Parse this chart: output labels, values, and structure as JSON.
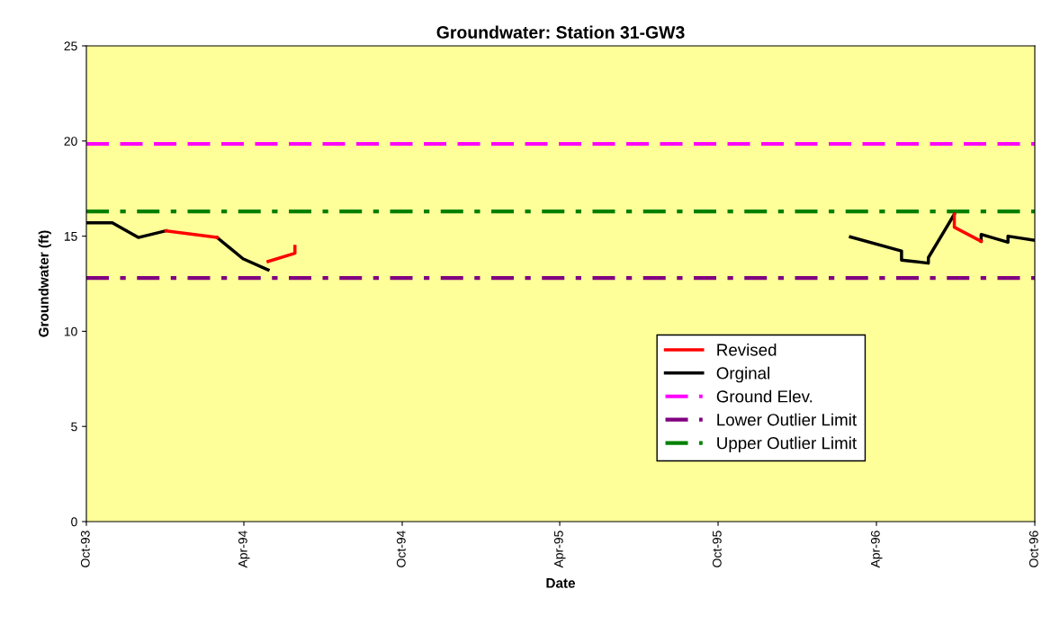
{
  "chart_data": {
    "type": "line",
    "title": "Groundwater: Station 31-GW3",
    "xlabel": "Date",
    "ylabel": "Groundwater (ft)",
    "series": [
      {
        "name": "Revised",
        "color": "#ff0000",
        "x": [
          "1994-01-01",
          "1994-03-01",
          null,
          "1994-04-29",
          "1994-05-30",
          "1994-05-30",
          null,
          "1996-06-30",
          "1996-06-30",
          "1996-07-31"
        ],
        "values": [
          15.28,
          14.93,
          null,
          13.67,
          14.1,
          14.46,
          null,
          16.15,
          15.47,
          14.73
        ]
      },
      {
        "name": "Orginal",
        "color": "#000000",
        "x": [
          "1993-10-01",
          "1993-10-31",
          "1993-11-30",
          "1994-01-01",
          null,
          "1994-03-01",
          "1994-03-31",
          "1994-04-29",
          null,
          "1996-03-02",
          "1996-04-30",
          "1996-04-30",
          "1996-05-31",
          "1996-05-31",
          "1996-06-30",
          null,
          "1996-07-31",
          "1996-07-31",
          "1996-08-31",
          "1996-08-31",
          "1996-10-01"
        ],
        "values": [
          15.7,
          15.7,
          14.93,
          15.28,
          null,
          14.93,
          13.81,
          13.23,
          null,
          14.96,
          14.22,
          13.74,
          13.58,
          13.87,
          16.15,
          null,
          14.73,
          15.09,
          14.68,
          15.0,
          14.78
        ]
      }
    ],
    "ref_lines": [
      {
        "axis": "y",
        "value": 19.85,
        "label": "Ground Elev.",
        "color": "#ff00ff",
        "line_style": "dashed"
      },
      {
        "axis": "y",
        "value": 12.8,
        "label": "Lower Outlier Limit",
        "color": "#800080",
        "line_style": "dashdot"
      },
      {
        "axis": "y",
        "value": 16.3,
        "label": "Upper Outlier Limit",
        "color": "#008000",
        "line_style": "dashdot"
      }
    ],
    "xlim": [
      "1993-10-01",
      "1996-10-01"
    ],
    "xticks": [
      {
        "value": "1993-10-01",
        "label": "Oct-93"
      },
      {
        "value": "1994-04-01",
        "label": "Apr-94"
      },
      {
        "value": "1994-10-01",
        "label": "Oct-94"
      },
      {
        "value": "1995-04-01",
        "label": "Apr-95"
      },
      {
        "value": "1995-10-01",
        "label": "Oct-95"
      },
      {
        "value": "1996-04-01",
        "label": "Apr-96"
      },
      {
        "value": "1996-10-01",
        "label": "Oct-96"
      }
    ],
    "ylim": [
      0,
      25
    ],
    "yticks": [
      0,
      5,
      10,
      15,
      20,
      25
    ],
    "grid": false,
    "legend": "bottom right",
    "marker": "none",
    "line_style": "solid"
  }
}
